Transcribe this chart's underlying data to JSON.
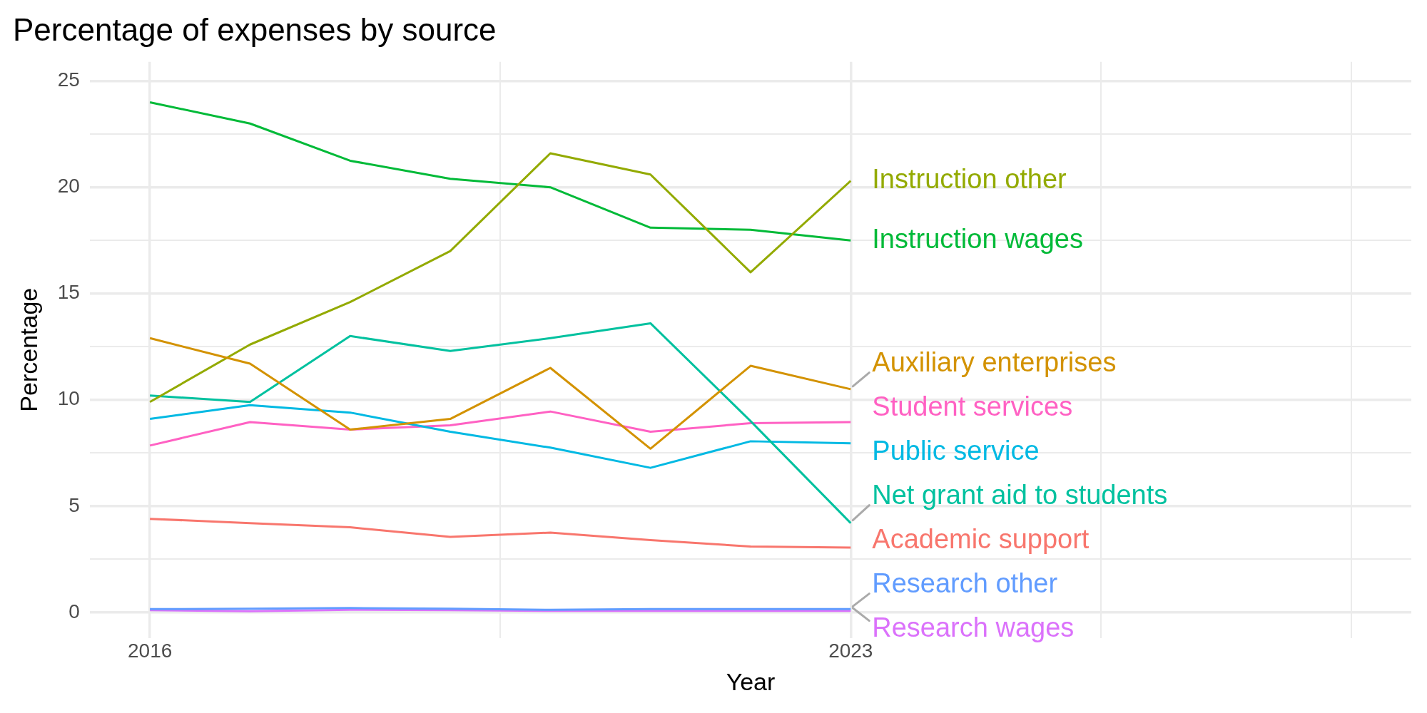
{
  "chart_data": {
    "type": "line",
    "title": "Percentage of expenses by source",
    "xlabel": "Year",
    "ylabel": "Percentage",
    "x": [
      2016,
      2017,
      2018,
      2019,
      2020,
      2021,
      2022,
      2023
    ],
    "xlim": [
      2015.4,
      2028.6
    ],
    "xticks": [
      2016,
      {
        "value": 2019.5,
        "label": null
      },
      2023,
      {
        "value": 2025.5,
        "label": null
      },
      {
        "value": 2028,
        "label": null
      }
    ],
    "ylim": [
      -1.2,
      25.9
    ],
    "yticks": [
      0,
      {
        "value": 2.5,
        "label": null
      },
      5,
      {
        "value": 7.5,
        "label": null
      },
      10,
      {
        "value": 12.5,
        "label": null
      },
      15,
      {
        "value": 17.5,
        "label": null
      },
      20,
      {
        "value": 22.5,
        "label": null
      },
      25
    ],
    "grid": true,
    "legend": false,
    "marker": "none",
    "line_style": "solid",
    "series": [
      {
        "name": "Academic support",
        "color": "#f8766d",
        "values": [
          4.4,
          4.2,
          4.0,
          3.55,
          3.75,
          3.4,
          3.1,
          3.05
        ]
      },
      {
        "name": "Auxiliary enterprises",
        "color": "#d39200",
        "values": [
          12.9,
          11.7,
          8.6,
          9.1,
          11.5,
          7.7,
          11.6,
          10.5
        ]
      },
      {
        "name": "Instruction other",
        "color": "#93aa00",
        "values": [
          9.9,
          12.6,
          14.6,
          17.0,
          21.6,
          20.6,
          16.0,
          20.3
        ]
      },
      {
        "name": "Instruction wages",
        "color": "#00ba38",
        "values": [
          24.0,
          23.0,
          21.25,
          20.4,
          20.0,
          18.1,
          18.0,
          17.5
        ]
      },
      {
        "name": "Net grant aid to students",
        "color": "#00c19f",
        "values": [
          10.2,
          9.9,
          13.0,
          12.3,
          12.9,
          13.6,
          9.0,
          4.2
        ]
      },
      {
        "name": "Public service",
        "color": "#00b9e3",
        "values": [
          9.1,
          9.75,
          9.4,
          8.5,
          7.75,
          6.8,
          8.05,
          7.95
        ]
      },
      {
        "name": "Research other",
        "color": "#619cff",
        "values": [
          0.15,
          0.17,
          0.2,
          0.17,
          0.12,
          0.15,
          0.15,
          0.15
        ]
      },
      {
        "name": "Research wages",
        "color": "#db72fb",
        "values": [
          0.1,
          0.05,
          0.12,
          0.1,
          0.07,
          0.07,
          0.07,
          0.07
        ]
      },
      {
        "name": "Student services",
        "color": "#ff61c3",
        "values": [
          7.85,
          8.95,
          8.6,
          8.8,
          9.45,
          8.5,
          8.9,
          8.95
        ]
      }
    ]
  }
}
